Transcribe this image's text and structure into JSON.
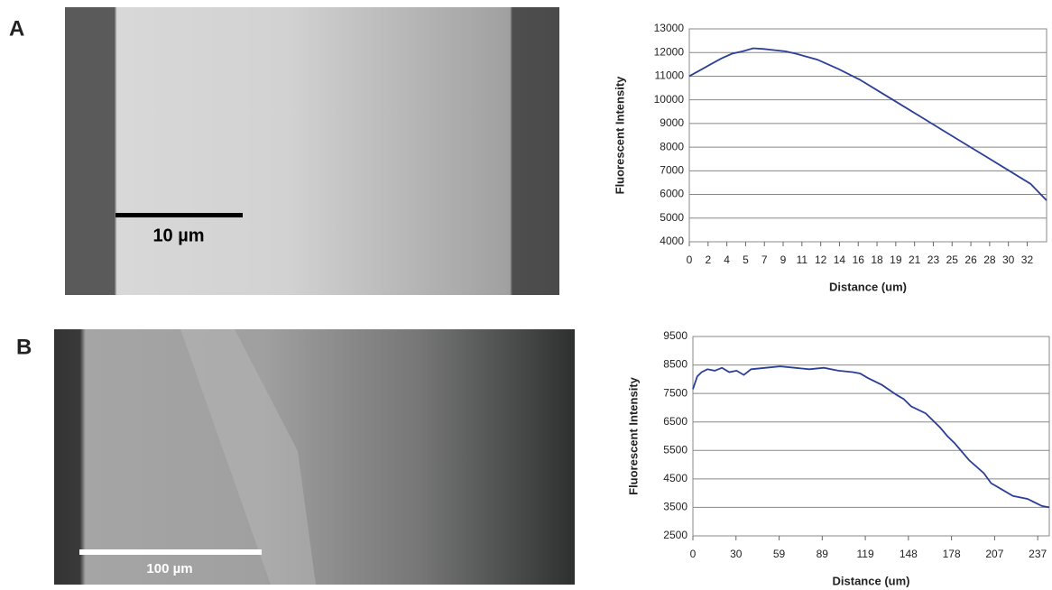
{
  "panels": [
    {
      "label": "A",
      "scale_bar": "10 µm"
    },
    {
      "label": "B",
      "scale_bar": "100 µm"
    }
  ],
  "chart_data": [
    {
      "type": "line",
      "x_label": "Distance (um)",
      "y_label": "Fluorescent Intensity",
      "color": "#2b3f99",
      "grid": true,
      "x": [
        0,
        1,
        2,
        3,
        4,
        5,
        6,
        7,
        8,
        9,
        10,
        12,
        14,
        16,
        18,
        20,
        22,
        24,
        26,
        28,
        30,
        32,
        33.5
      ],
      "values": [
        11000,
        11250,
        11500,
        11750,
        11950,
        12050,
        12180,
        12150,
        12100,
        12050,
        11950,
        11700,
        11300,
        10850,
        10300,
        9750,
        9200,
        8650,
        8100,
        7550,
        7000,
        6450,
        5750
      ],
      "xlim": [
        0,
        33.5
      ],
      "ylim": [
        4000,
        13000
      ],
      "xticks": [
        0,
        {
          "value": 1.76,
          "label": "2"
        },
        {
          "value": 3.52,
          "label": "4"
        },
        {
          "value": 5.28,
          "label": "5"
        },
        {
          "value": 7.04,
          "label": "7"
        },
        {
          "value": 8.8,
          "label": "9"
        },
        {
          "value": 10.56,
          "label": "11"
        },
        {
          "value": 12.32,
          "label": "12"
        },
        {
          "value": 14.08,
          "label": "14"
        },
        {
          "value": 15.84,
          "label": "16"
        },
        {
          "value": 17.6,
          "label": "18"
        },
        {
          "value": 19.36,
          "label": "19"
        },
        {
          "value": 21.12,
          "label": "21"
        },
        {
          "value": 22.88,
          "label": "23"
        },
        {
          "value": 24.64,
          "label": "25"
        },
        {
          "value": 26.4,
          "label": "26"
        },
        {
          "value": 28.16,
          "label": "28"
        },
        {
          "value": 29.92,
          "label": "30"
        },
        {
          "value": 31.68,
          "label": "32"
        }
      ],
      "yticks": [
        4000,
        5000,
        6000,
        7000,
        8000,
        9000,
        10000,
        11000,
        12000,
        13000
      ]
    },
    {
      "type": "line",
      "x_label": "Distance (um)",
      "y_label": "Fluorescent Intensity",
      "color": "#2b3f99",
      "grid": true,
      "x": [
        0,
        3,
        6,
        10,
        15,
        20,
        25,
        30,
        35,
        40,
        50,
        60,
        70,
        80,
        90,
        100,
        110,
        115,
        120,
        130,
        140,
        145,
        150,
        160,
        170,
        175,
        180,
        190,
        200,
        205,
        210,
        220,
        230,
        240,
        245
      ],
      "values": [
        7650,
        8100,
        8250,
        8350,
        8300,
        8400,
        8250,
        8300,
        8150,
        8350,
        8400,
        8450,
        8400,
        8350,
        8400,
        8300,
        8250,
        8200,
        8050,
        7800,
        7450,
        7300,
        7050,
        6800,
        6300,
        6000,
        5750,
        5150,
        4700,
        4350,
        4200,
        3900,
        3800,
        3550,
        3500
      ],
      "xlim": [
        0,
        245
      ],
      "ylim": [
        2500,
        9500
      ],
      "xticks": [
        0,
        {
          "value": 29.63,
          "label": "30"
        },
        {
          "value": 59.26,
          "label": "59"
        },
        {
          "value": 88.89,
          "label": "89"
        },
        {
          "value": 118.52,
          "label": "119"
        },
        {
          "value": 148.15,
          "label": "148"
        },
        {
          "value": 177.78,
          "label": "178"
        },
        {
          "value": 207.41,
          "label": "207"
        },
        {
          "value": 237.04,
          "label": "237"
        }
      ],
      "yticks": [
        2500,
        3500,
        4500,
        5500,
        6500,
        7500,
        8500,
        9500
      ]
    }
  ]
}
